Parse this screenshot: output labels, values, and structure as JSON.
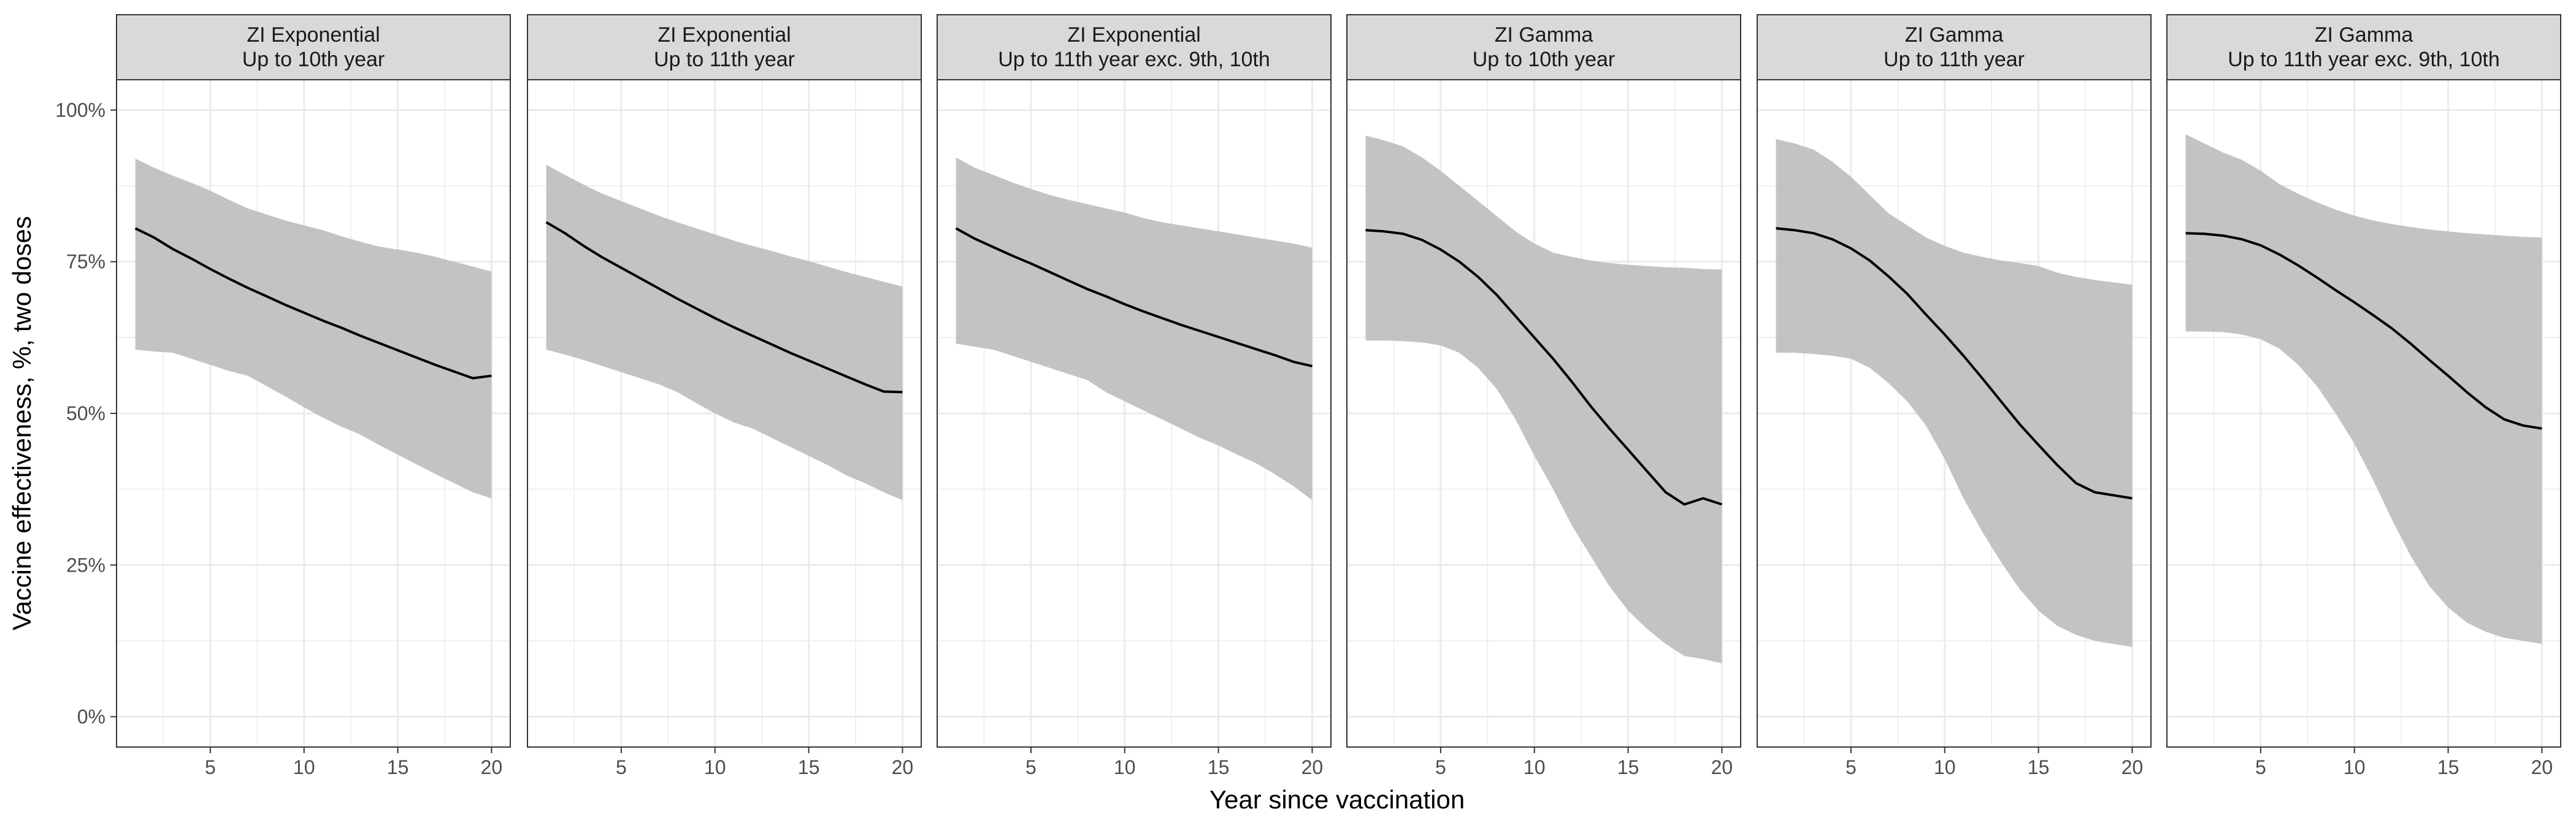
{
  "chart_data": {
    "type": "line",
    "xlabel": "Year since vaccination",
    "ylabel": "Vaccine effectiveness, %, two doses",
    "xlim": [
      0,
      21
    ],
    "ylim": [
      -0.05,
      1.05
    ],
    "x_ticks": [
      5,
      10,
      15,
      20
    ],
    "x_tick_labels": [
      "5",
      "10",
      "15",
      "20"
    ],
    "y_ticks": [
      0,
      0.25,
      0.5,
      0.75,
      1.0
    ],
    "y_tick_labels": [
      "0%",
      "25%",
      "50%",
      "75%",
      "100%"
    ],
    "grid": true,
    "legend": "none",
    "colors": {
      "line": "#000000",
      "ribbon": "#bebebe",
      "strip_fill": "#d9d9d9",
      "panel_border": "#333333",
      "grid": "#ebebeb"
    },
    "panels": [
      {
        "strip": [
          "ZI Exponential",
          "Up to 10th year"
        ],
        "x": [
          1,
          2,
          3,
          4,
          5,
          6,
          7,
          8,
          9,
          10,
          11,
          12,
          13,
          14,
          15,
          16,
          17,
          18,
          19,
          20
        ],
        "estimate": [
          0.805,
          0.79,
          0.771,
          0.755,
          0.738,
          0.722,
          0.707,
          0.693,
          0.679,
          0.666,
          0.653,
          0.641,
          0.628,
          0.616,
          0.604,
          0.592,
          0.58,
          0.569,
          0.558,
          0.562
        ],
        "lower": [
          0.605,
          0.602,
          0.6,
          0.59,
          0.58,
          0.57,
          0.562,
          0.545,
          0.528,
          0.51,
          0.493,
          0.478,
          0.465,
          0.448,
          0.432,
          0.416,
          0.4,
          0.385,
          0.37,
          0.36
        ],
        "upper": [
          0.92,
          0.905,
          0.892,
          0.88,
          0.867,
          0.852,
          0.838,
          0.828,
          0.818,
          0.81,
          0.802,
          0.792,
          0.783,
          0.775,
          0.77,
          0.765,
          0.758,
          0.75,
          0.742,
          0.734
        ]
      },
      {
        "strip": [
          "ZI Exponential",
          "Up to 11th year"
        ],
        "x": [
          1,
          2,
          3,
          4,
          5,
          6,
          7,
          8,
          9,
          10,
          11,
          12,
          13,
          14,
          15,
          16,
          17,
          18,
          19,
          20
        ],
        "estimate": [
          0.815,
          0.797,
          0.776,
          0.757,
          0.74,
          0.723,
          0.706,
          0.689,
          0.673,
          0.657,
          0.642,
          0.628,
          0.614,
          0.6,
          0.587,
          0.574,
          0.561,
          0.548,
          0.536,
          0.535
        ],
        "lower": [
          0.605,
          0.597,
          0.588,
          0.578,
          0.568,
          0.558,
          0.548,
          0.535,
          0.517,
          0.5,
          0.485,
          0.475,
          0.46,
          0.445,
          0.43,
          0.415,
          0.398,
          0.385,
          0.37,
          0.357
        ],
        "upper": [
          0.91,
          0.893,
          0.877,
          0.862,
          0.85,
          0.838,
          0.826,
          0.815,
          0.805,
          0.795,
          0.785,
          0.776,
          0.768,
          0.759,
          0.751,
          0.742,
          0.733,
          0.725,
          0.717,
          0.709
        ]
      },
      {
        "strip": [
          "ZI Exponential",
          "Up to 11th year exc. 9th, 10th"
        ],
        "x": [
          1,
          2,
          3,
          4,
          5,
          6,
          7,
          8,
          9,
          10,
          11,
          12,
          13,
          14,
          15,
          16,
          17,
          18,
          19,
          20
        ],
        "estimate": [
          0.805,
          0.788,
          0.774,
          0.76,
          0.747,
          0.733,
          0.719,
          0.705,
          0.693,
          0.68,
          0.668,
          0.657,
          0.646,
          0.636,
          0.626,
          0.616,
          0.606,
          0.596,
          0.585,
          0.578
        ],
        "lower": [
          0.615,
          0.61,
          0.605,
          0.595,
          0.585,
          0.575,
          0.565,
          0.555,
          0.535,
          0.52,
          0.505,
          0.49,
          0.475,
          0.46,
          0.447,
          0.432,
          0.418,
          0.4,
          0.38,
          0.357
        ],
        "upper": [
          0.922,
          0.905,
          0.893,
          0.881,
          0.87,
          0.86,
          0.852,
          0.845,
          0.838,
          0.831,
          0.822,
          0.815,
          0.81,
          0.805,
          0.8,
          0.795,
          0.79,
          0.785,
          0.78,
          0.773
        ]
      },
      {
        "strip": [
          "ZI Gamma",
          "Up to 10th year"
        ],
        "x": [
          1,
          2,
          3,
          4,
          5,
          6,
          7,
          8,
          9,
          10,
          11,
          12,
          13,
          14,
          15,
          16,
          17,
          18,
          19,
          20
        ],
        "estimate": [
          0.802,
          0.8,
          0.796,
          0.786,
          0.77,
          0.75,
          0.725,
          0.695,
          0.66,
          0.625,
          0.59,
          0.552,
          0.512,
          0.475,
          0.44,
          0.405,
          0.37,
          0.35,
          0.36,
          0.35
        ],
        "lower": [
          0.62,
          0.62,
          0.619,
          0.617,
          0.612,
          0.6,
          0.575,
          0.54,
          0.49,
          0.43,
          0.375,
          0.315,
          0.265,
          0.215,
          0.175,
          0.145,
          0.12,
          0.1,
          0.095,
          0.088
        ],
        "upper": [
          0.958,
          0.95,
          0.94,
          0.922,
          0.9,
          0.875,
          0.85,
          0.825,
          0.8,
          0.78,
          0.765,
          0.758,
          0.752,
          0.748,
          0.745,
          0.743,
          0.741,
          0.74,
          0.738,
          0.737
        ]
      },
      {
        "strip": [
          "ZI Gamma",
          "Up to 11th year"
        ],
        "x": [
          1,
          2,
          3,
          4,
          5,
          6,
          7,
          8,
          9,
          10,
          11,
          12,
          13,
          14,
          15,
          16,
          17,
          18,
          19,
          20
        ],
        "estimate": [
          0.805,
          0.802,
          0.797,
          0.787,
          0.772,
          0.752,
          0.726,
          0.697,
          0.663,
          0.63,
          0.595,
          0.558,
          0.52,
          0.482,
          0.448,
          0.415,
          0.385,
          0.37,
          0.365,
          0.36
        ],
        "lower": [
          0.6,
          0.6,
          0.598,
          0.595,
          0.59,
          0.575,
          0.55,
          0.52,
          0.48,
          0.425,
          0.36,
          0.305,
          0.255,
          0.21,
          0.175,
          0.15,
          0.135,
          0.125,
          0.12,
          0.115
        ],
        "upper": [
          0.952,
          0.945,
          0.935,
          0.915,
          0.89,
          0.86,
          0.83,
          0.81,
          0.79,
          0.776,
          0.765,
          0.758,
          0.752,
          0.748,
          0.743,
          0.732,
          0.725,
          0.72,
          0.716,
          0.712
        ]
      },
      {
        "strip": [
          "ZI Gamma",
          "Up to 11th year exc. 9th, 10th"
        ],
        "x": [
          1,
          2,
          3,
          4,
          5,
          6,
          7,
          8,
          9,
          10,
          11,
          12,
          13,
          14,
          15,
          16,
          17,
          18,
          19,
          20
        ],
        "estimate": [
          0.797,
          0.796,
          0.793,
          0.787,
          0.777,
          0.762,
          0.744,
          0.724,
          0.703,
          0.683,
          0.662,
          0.64,
          0.615,
          0.588,
          0.562,
          0.535,
          0.51,
          0.49,
          0.48,
          0.475
        ],
        "lower": [
          0.635,
          0.635,
          0.634,
          0.63,
          0.622,
          0.607,
          0.58,
          0.545,
          0.5,
          0.45,
          0.39,
          0.325,
          0.265,
          0.215,
          0.18,
          0.155,
          0.14,
          0.13,
          0.125,
          0.12
        ],
        "upper": [
          0.96,
          0.945,
          0.93,
          0.918,
          0.9,
          0.878,
          0.862,
          0.848,
          0.836,
          0.826,
          0.818,
          0.812,
          0.807,
          0.803,
          0.8,
          0.797,
          0.795,
          0.793,
          0.791,
          0.79
        ]
      }
    ]
  }
}
